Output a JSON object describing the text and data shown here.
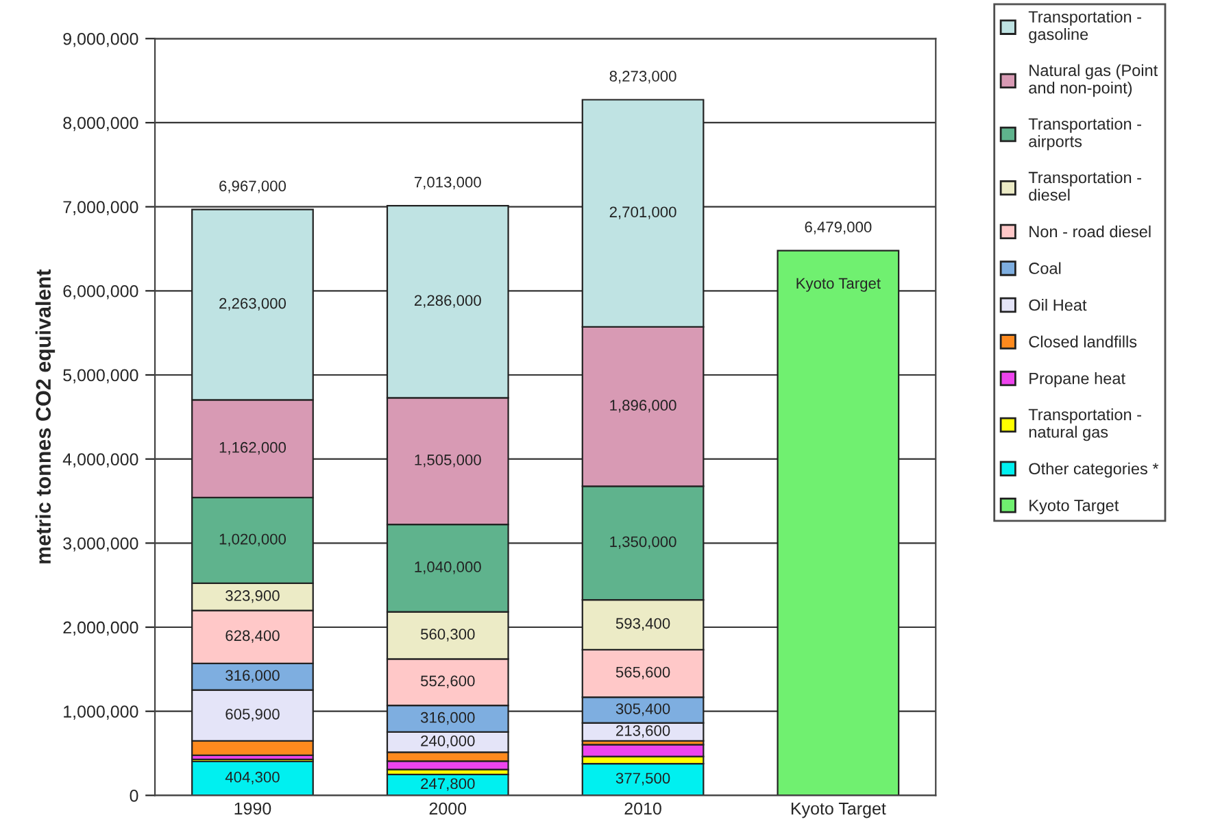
{
  "chart_data": {
    "type": "bar",
    "stacked": true,
    "ylabel": "metric tonnes CO2 equivalent",
    "categories": [
      "1990",
      "2000",
      "2010",
      "Kyoto Target"
    ],
    "series": [
      {
        "name": "Kyoto Target",
        "color": "#70f070",
        "values": [
          null,
          null,
          null,
          6479000
        ],
        "value_labels": [
          null,
          null,
          null,
          null
        ]
      },
      {
        "name": "Other categories *",
        "color": "#00f0f0",
        "values": [
          404300,
          247800,
          377500,
          null
        ],
        "value_labels": [
          "404,300",
          "247,800",
          "377,500",
          null
        ]
      },
      {
        "name": "Transportation - natural gas",
        "color": "#ffff00",
        "values": [
          23500,
          60300,
          85500,
          null
        ],
        "value_labels": [
          null,
          null,
          null,
          null
        ]
      },
      {
        "name": "Propane heat",
        "color": "#ee44ee",
        "values": [
          50000,
          100000,
          140000,
          null
        ],
        "value_labels": [
          null,
          null,
          null,
          null
        ]
      },
      {
        "name": "Closed landfills",
        "color": "#ff8a1e",
        "values": [
          170000,
          105000,
          45000,
          null
        ],
        "value_labels": [
          null,
          null,
          null,
          null
        ]
      },
      {
        "name": "Oil Heat",
        "color": "#e4e4f8",
        "values": [
          605900,
          240000,
          213600,
          null
        ],
        "value_labels": [
          "605,900",
          "240,000",
          "213,600",
          null
        ]
      },
      {
        "name": "Coal",
        "color": "#7eaee0",
        "values": [
          316000,
          316000,
          305400,
          null
        ],
        "value_labels": [
          "316,000",
          "316,000",
          "305,400",
          null
        ]
      },
      {
        "name": "Non - road diesel",
        "color": "#ffc8c8",
        "values": [
          628400,
          552600,
          565600,
          null
        ],
        "value_labels": [
          "628,400",
          "552,600",
          "565,600",
          null
        ]
      },
      {
        "name": "Transportation - diesel",
        "color": "#ecebc6",
        "values": [
          323900,
          560300,
          593400,
          null
        ],
        "value_labels": [
          "323,900",
          "560,300",
          "593,400",
          null
        ]
      },
      {
        "name": "Transportation - airports",
        "color": "#5fb38d",
        "values": [
          1020000,
          1040000,
          1350000,
          null
        ],
        "value_labels": [
          "1,020,000",
          "1,040,000",
          "1,350,000",
          null
        ]
      },
      {
        "name": "Natural gas (Point and non-point)",
        "color": "#d89ab4",
        "values": [
          1162000,
          1505000,
          1896000,
          null
        ],
        "value_labels": [
          "1,162,000",
          "1,505,000",
          "1,896,000",
          null
        ]
      },
      {
        "name": "Transportation - gasoline",
        "color": "#bfe3e3",
        "values": [
          2263000,
          2286000,
          2701000,
          null
        ],
        "value_labels": [
          "2,263,000",
          "2,286,000",
          "2,701,000",
          null
        ]
      }
    ],
    "totals": [
      "6,967,000",
      "7,013,000",
      "8,273,000",
      "6,479,000"
    ],
    "annotations": [
      "Kyoto Target"
    ],
    "ylim": [
      0,
      9000000
    ],
    "yticks": [
      {
        "value": 0,
        "label": "0"
      },
      {
        "value": 1000000,
        "label": "1,000,000"
      },
      {
        "value": 2000000,
        "label": "2,000,000"
      },
      {
        "value": 3000000,
        "label": "3,000,000"
      },
      {
        "value": 4000000,
        "label": "4,000,000"
      },
      {
        "value": 5000000,
        "label": "5,000,000"
      },
      {
        "value": 6000000,
        "label": "6,000,000"
      },
      {
        "value": 7000000,
        "label": "7,000,000"
      },
      {
        "value": 8000000,
        "label": "8,000,000"
      },
      {
        "value": 9000000,
        "label": "9,000,000"
      }
    ],
    "grid": "y",
    "legend": "right"
  }
}
